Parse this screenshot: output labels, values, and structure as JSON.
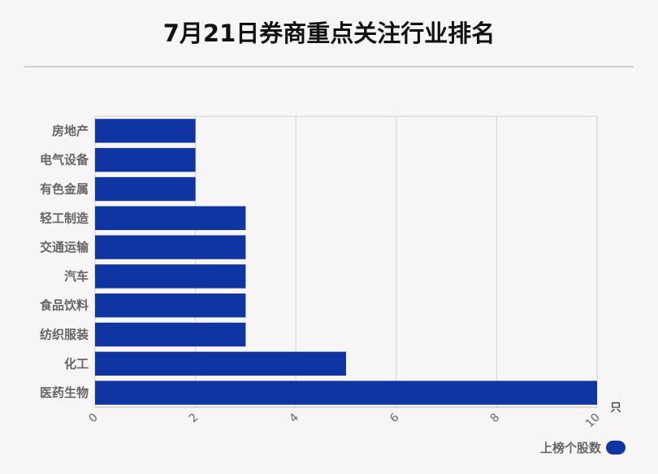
{
  "title": "7月21日券商重点关注行业排名",
  "legend": {
    "label": "上榜个股数",
    "color": "#0e35a1"
  },
  "chart_data": {
    "type": "bar",
    "orientation": "horizontal",
    "categories": [
      "房地产",
      "电气设备",
      "有色金属",
      "轻工制造",
      "交通运输",
      "汽车",
      "食品饮料",
      "纺织服装",
      "化工",
      "医药生物"
    ],
    "series": [
      {
        "name": "上榜个股数",
        "values": [
          2,
          2,
          2,
          3,
          3,
          3,
          3,
          3,
          5,
          10
        ],
        "color": "#0e35a1"
      }
    ],
    "xlim": [
      0,
      10
    ],
    "xticks": [
      "0",
      "2",
      "4",
      "6",
      "8",
      "10"
    ],
    "xunit": "只",
    "grid": true,
    "legend_position": "bottom-right"
  }
}
